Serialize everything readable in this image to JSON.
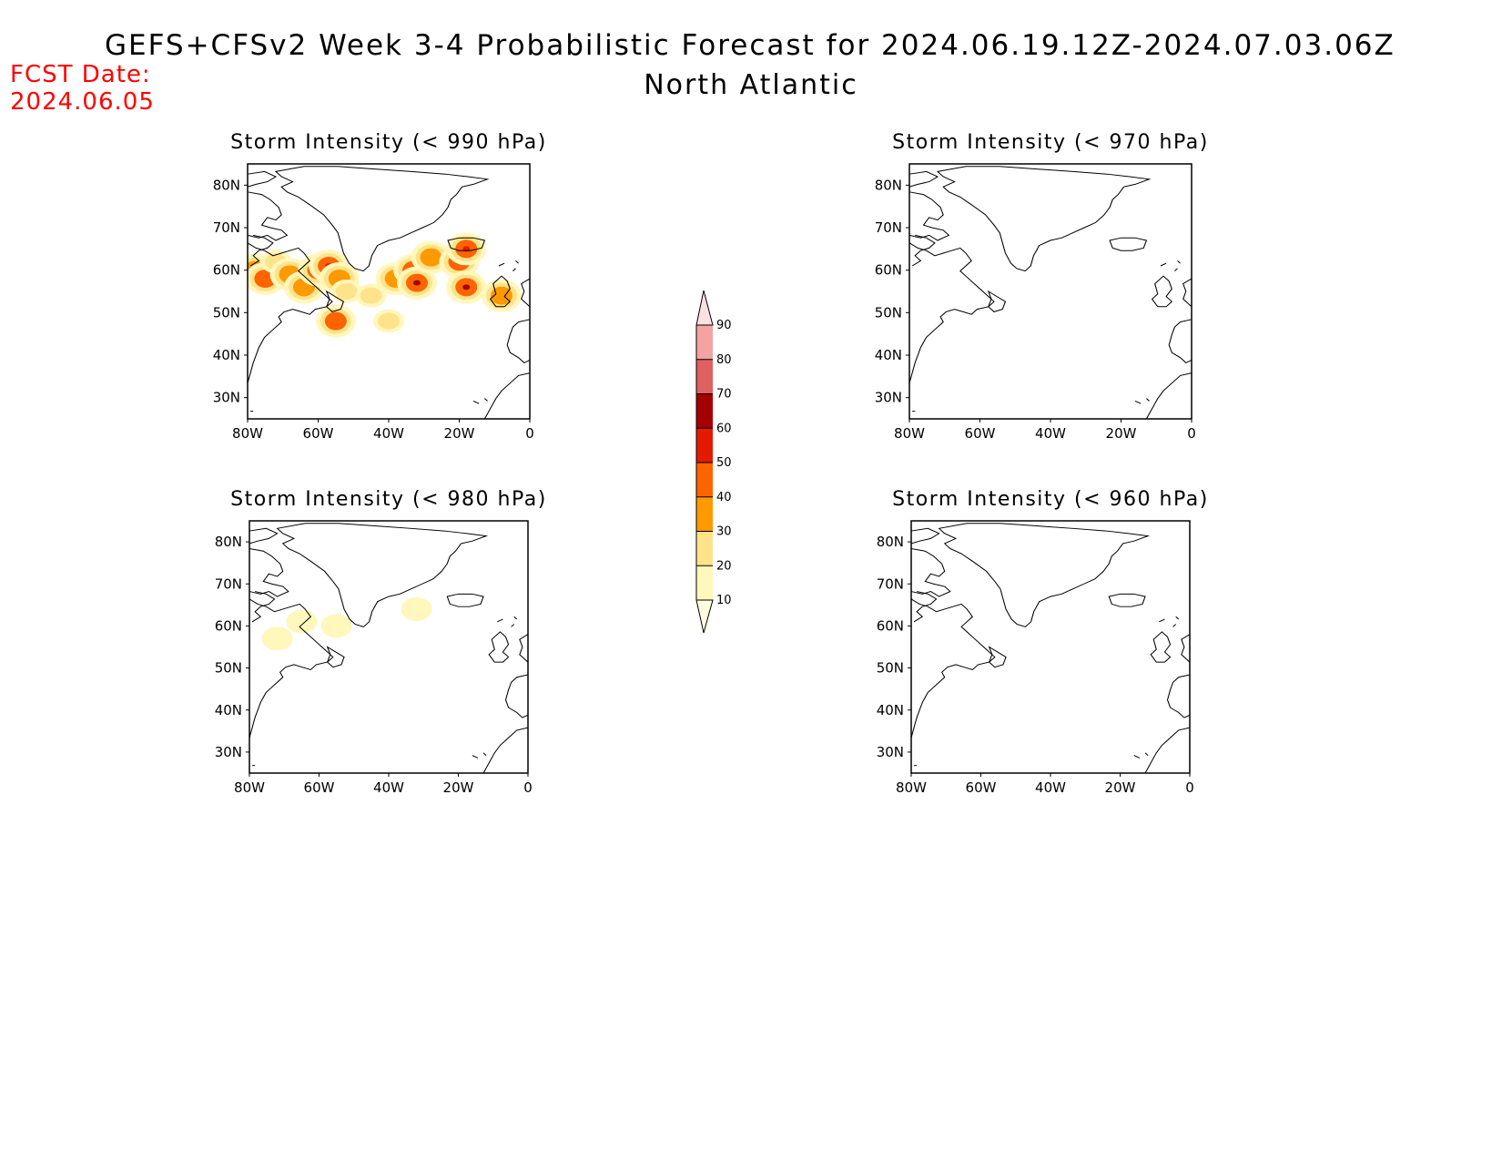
{
  "header": {
    "title": "GEFS+CFSv2 Week 3-4 Probabilistic Forecast for 2024.06.19.12Z-2024.07.03.06Z",
    "subtitle": "North Atlantic",
    "fcst_label": "FCST Date:",
    "fcst_value": "2024.06.05"
  },
  "panels": [
    {
      "id": "p990",
      "title": "Storm Intensity (< 990 hPa)"
    },
    {
      "id": "p970",
      "title": "Storm Intensity (< 970 hPa)"
    },
    {
      "id": "p980",
      "title": "Storm Intensity (< 980 hPa)"
    },
    {
      "id": "p960",
      "title": "Storm Intensity (< 960 hPa)"
    }
  ],
  "axes": {
    "lat_labels": [
      "80N",
      "70N",
      "60N",
      "50N",
      "40N",
      "30N"
    ],
    "lon_labels": [
      "80W",
      "60W",
      "40W",
      "20W",
      "0"
    ]
  },
  "colorbar": {
    "levels": [
      "10",
      "20",
      "30",
      "40",
      "50",
      "60",
      "70",
      "80",
      "90"
    ],
    "colors": [
      "#fff7bc",
      "#fee38b",
      "#fe9900",
      "#ff6400",
      "#e41a00",
      "#a50000",
      "#e06060",
      "#f4a3a3",
      "#fde0e0"
    ]
  },
  "map_data": {
    "type": "probability-shading",
    "region": "North Atlantic",
    "lon_range": [
      -80,
      0
    ],
    "lat_range": [
      25,
      85
    ],
    "p990": [
      {
        "lon": -78,
        "lat": 60,
        "p": 30
      },
      {
        "lon": -75,
        "lat": 58,
        "p": 40
      },
      {
        "lon": -72,
        "lat": 62,
        "p": 20
      },
      {
        "lon": -68,
        "lat": 59,
        "p": 30
      },
      {
        "lon": -64,
        "lat": 56,
        "p": 30
      },
      {
        "lon": -60,
        "lat": 60,
        "p": 40
      },
      {
        "lon": -57,
        "lat": 61,
        "p": 50
      },
      {
        "lon": -54,
        "lat": 58,
        "p": 30
      },
      {
        "lon": -52,
        "lat": 55,
        "p": 20
      },
      {
        "lon": -55,
        "lat": 48,
        "p": 40
      },
      {
        "lon": -45,
        "lat": 54,
        "p": 20
      },
      {
        "lon": -38,
        "lat": 58,
        "p": 30
      },
      {
        "lon": -33,
        "lat": 60,
        "p": 40
      },
      {
        "lon": -32,
        "lat": 57,
        "p": 60
      },
      {
        "lon": -28,
        "lat": 63,
        "p": 30
      },
      {
        "lon": -20,
        "lat": 62,
        "p": 40
      },
      {
        "lon": -18,
        "lat": 56,
        "p": 60
      },
      {
        "lon": -18,
        "lat": 65,
        "p": 50
      },
      {
        "lon": -8,
        "lat": 54,
        "p": 30
      },
      {
        "lon": -40,
        "lat": 48,
        "p": 20
      }
    ],
    "p980": [
      {
        "lon": -72,
        "lat": 57,
        "p": 10
      },
      {
        "lon": -65,
        "lat": 61,
        "p": 10
      },
      {
        "lon": -55,
        "lat": 60,
        "p": 10
      },
      {
        "lon": -32,
        "lat": 64,
        "p": 10
      }
    ],
    "p970": [],
    "p960": []
  }
}
